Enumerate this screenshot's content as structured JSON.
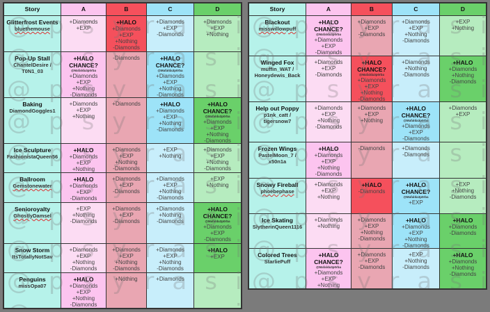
{
  "watermark": "@psyrasite",
  "colors": {
    "story": "#b6f2ea",
    "A": "#fcdcf3",
    "A_halo": "#fcc4ef",
    "B": "#e9a6b2",
    "B_halo": "#f5505c",
    "C": "#c8eefb",
    "C_halo": "#9de3f8",
    "D": "#b6ecbf",
    "D_halo": "#6ad06a",
    "background": "#7b7b7b"
  },
  "tables": [
    {
      "headers": [
        "Story",
        "A",
        "B",
        "C",
        "D"
      ],
      "rows": [
        {
          "title": "Glitterfrost Events",
          "authors": [
            "bluethemouse"
          ],
          "spell": true,
          "cells": [
            {
              "halo": false,
              "lines": [
                "+Diamonds",
                "+EXP"
              ]
            },
            {
              "halo": true,
              "lines": [
                "+HALO",
                "+Diamonds",
                "+EXP",
                "+Nothing",
                "-Diamonds"
              ]
            },
            {
              "halo": false,
              "lines": [
                "+Diamonds",
                "+EXP",
                "-Diamonds"
              ]
            },
            {
              "halo": false,
              "lines": [
                "+Diamonds",
                "+EXP",
                "+Nothing"
              ]
            }
          ]
        },
        {
          "title": "Pop-Up Stall",
          "authors": [
            "ChantelDesire /",
            "T0N1_03"
          ],
          "spell": false,
          "cells": [
            {
              "halo": true,
              "lines": [
                "+HALO",
                "CHANCE?",
                "@Mafalda3p0rba",
                "+Diamonds",
                "+EXP",
                "+Nothing",
                "-Diamonds"
              ]
            },
            {
              "halo": false,
              "lines": [
                "-Diamonds"
              ]
            },
            {
              "halo": true,
              "lines": [
                "+HALO",
                "CHANCE?",
                "@Mafalda3p0rba",
                "+Diamonds",
                "+EXP",
                "+Nothing",
                "-Diamonds"
              ]
            },
            {
              "halo": false,
              "lines": []
            }
          ]
        },
        {
          "title": "Baking",
          "authors": [
            "DiamondGoggles1"
          ],
          "spell": false,
          "cells": [
            {
              "halo": false,
              "lines": [
                "+Diamonds",
                "+EXP",
                "+Nothing"
              ]
            },
            {
              "halo": false,
              "lines": [
                "+Diamonds"
              ]
            },
            {
              "halo": true,
              "lines": [
                "+HALO",
                "+Diamonds",
                "+EXP",
                "+Nothing",
                "-Diamonds"
              ]
            },
            {
              "halo": true,
              "lines": [
                "+HALO",
                "CHANCE?",
                "@Mafalda3p0rba",
                "+Diamonds",
                "+EXP",
                "+Nothing",
                "-Diamonds"
              ]
            }
          ]
        },
        {
          "title": "Ice Sculpture",
          "authors": [
            "FashionistaQueen56"
          ],
          "spell": false,
          "cells": [
            {
              "halo": true,
              "lines": [
                "+HALO",
                "+Diamonds",
                "+EXP",
                "+Nothing"
              ]
            },
            {
              "halo": false,
              "lines": [
                "+Diamonds",
                "+EXP",
                "+Nothing",
                "-Diamonds"
              ]
            },
            {
              "halo": false,
              "lines": [
                "+EXP",
                "+Nothing"
              ]
            },
            {
              "halo": false,
              "lines": [
                "+Diamonds",
                "+EXP",
                "+Nothing",
                "-Diamonds"
              ]
            }
          ]
        },
        {
          "title": "Ballroom",
          "authors": [
            "Gemstonewater"
          ],
          "spell": true,
          "cells": [
            {
              "halo": true,
              "lines": [
                "+HALO",
                "+Diamonds",
                "+EXP",
                "-Diamonds"
              ]
            },
            {
              "halo": false,
              "lines": [
                "+Diamonds",
                "+EXP",
                "-Diamonds"
              ]
            },
            {
              "halo": false,
              "lines": [
                "+Diamonds",
                "+EXP",
                "+Nothing",
                "-Diamonds"
              ]
            },
            {
              "halo": false,
              "lines": [
                "+EXP",
                "+Nothing"
              ]
            }
          ]
        },
        {
          "title": "Senioroyalty",
          "authors": [
            "GhostlyDamsel"
          ],
          "spell": true,
          "titleSpell": true,
          "cells": [
            {
              "halo": false,
              "lines": [
                "+EXP",
                "+Nothing",
                "-Diamonds"
              ]
            },
            {
              "halo": false,
              "lines": [
                "+Diamonds",
                "+EXP",
                "-Diamonds"
              ]
            },
            {
              "halo": false,
              "lines": [
                "+Diamonds",
                "+Nothing",
                "-Diamonds"
              ]
            },
            {
              "halo": true,
              "lines": [
                "+HALO",
                "CHANCE?",
                "@Mafalda3p0rba",
                "+Diamonds",
                "+EXP",
                "-Diamonds"
              ]
            }
          ]
        },
        {
          "title": "Snow Storm",
          "authors": [
            "ItsTotallyNotSav"
          ],
          "spell": false,
          "cells": [
            {
              "halo": false,
              "lines": [
                "+Diamonds",
                "+EXP",
                "+Nothing",
                "-Diamonds"
              ]
            },
            {
              "halo": false,
              "lines": [
                "+Diamonds",
                "+EXP",
                "+Nothing",
                "-Diamonds"
              ]
            },
            {
              "halo": false,
              "lines": [
                "+Diamonds",
                "+EXP",
                "+Nothing",
                "-Diamonds"
              ]
            },
            {
              "halo": true,
              "lines": [
                "+HALO",
                "+EXP"
              ]
            }
          ]
        },
        {
          "title": "Penguins",
          "authors": [
            "missOpa07"
          ],
          "spell": false,
          "cells": [
            {
              "halo": true,
              "lines": [
                "+HALO",
                "+Diamonds",
                "+EXP",
                "+Nothing",
                "-Diamonds"
              ]
            },
            {
              "halo": false,
              "lines": [
                "+Nothing"
              ]
            },
            {
              "halo": false,
              "lines": [
                "+Diamonds"
              ]
            },
            {
              "halo": false,
              "lines": []
            }
          ]
        }
      ]
    },
    {
      "headers": [
        "Story",
        "A",
        "B",
        "C",
        "D"
      ],
      "rows": [
        {
          "title": "Blackout",
          "authors": [
            "misswillowpuff"
          ],
          "spell": true,
          "cells": [
            {
              "halo": true,
              "lines": [
                "+HALO",
                "CHANCE?",
                "@Mafalda3p0rba",
                "+Diamonds",
                "+EXP",
                "-Diamonds"
              ]
            },
            {
              "halo": false,
              "lines": [
                "+Diamonds",
                "+EXP",
                "-Diamonds"
              ]
            },
            {
              "halo": false,
              "lines": [
                "+Diamonds",
                "+EXP",
                "+Nothing",
                "-Diamonds"
              ]
            },
            {
              "halo": false,
              "lines": [
                "+EXP",
                "+Nothing"
              ]
            }
          ]
        },
        {
          "title": "Winged Fox",
          "authors": [
            "muffin_WAT /",
            "Honeydewis_Back"
          ],
          "spell": false,
          "cells": [
            {
              "halo": false,
              "lines": [
                "+Diamonds",
                "+EXP",
                "-Diamonds"
              ]
            },
            {
              "halo": true,
              "lines": [
                "+HALO",
                "CHANCE?",
                "@Mafalda3p0rba",
                "+Diamonds",
                "+EXP",
                "+Nothing",
                "-Diamonds"
              ]
            },
            {
              "halo": false,
              "lines": [
                "+Diamonds",
                "+Nothing",
                "-Diamonds"
              ]
            },
            {
              "halo": true,
              "lines": [
                "+HALO",
                "+Diamonds",
                "+Nothing",
                "-Diamonds"
              ]
            }
          ]
        },
        {
          "title": "Help out Poppy",
          "authors": [
            "p1nk_catt /",
            "tigersnow7"
          ],
          "spell": false,
          "cells": [
            {
              "halo": false,
              "lines": [
                "+Diamonds",
                "+EXP",
                "+Nothing",
                "-Diamonds"
              ]
            },
            {
              "halo": false,
              "lines": [
                "+Diamonds",
                "+EXP",
                "+Nothing"
              ]
            },
            {
              "halo": true,
              "lines": [
                "+HALO",
                "CHANCE?",
                "@Mafalda3p0rba",
                "+Diamonds",
                "+EXP",
                "-Diamonds"
              ]
            },
            {
              "halo": false,
              "lines": [
                "+Diamonds",
                "+EXP"
              ]
            }
          ]
        },
        {
          "title": "Frozen Wings",
          "authors": [
            "PastelMoon_7 /",
            "x50n1a"
          ],
          "spell": false,
          "cells": [
            {
              "halo": true,
              "lines": [
                "+HALO",
                "+Diamonds",
                "+EXP",
                "+Nothing",
                "-Diamonds"
              ]
            },
            {
              "halo": false,
              "lines": [
                "-Diamonds"
              ]
            },
            {
              "halo": false,
              "lines": [
                "+Diamonds",
                "-Diamonds"
              ]
            },
            {
              "halo": false,
              "lines": []
            }
          ]
        },
        {
          "title": "Snowy Fireball",
          "authors": [
            "phoebephase"
          ],
          "spell": true,
          "cells": [
            {
              "halo": false,
              "lines": [
                "+Diamonds",
                "+EXP",
                "+Nothing"
              ]
            },
            {
              "halo": true,
              "lines": [
                "+HALO",
                "-Diamonds"
              ]
            },
            {
              "halo": true,
              "lines": [
                "+HALO",
                "CHANCE?",
                "@Mafalda3p0rba",
                "+EXP"
              ]
            },
            {
              "halo": false,
              "lines": [
                "+EXP",
                "+Nothing",
                "-Diamonds"
              ]
            }
          ]
        },
        {
          "title": "Ice Skating",
          "authors": [
            "SlytherinQueen1116"
          ],
          "spell": false,
          "cells": [
            {
              "halo": false,
              "lines": [
                "+Diamonds",
                "+Nothing"
              ]
            },
            {
              "halo": false,
              "lines": [
                "+Diamonds",
                "+EXP",
                "+Nothing",
                "-Diamonds"
              ]
            },
            {
              "halo": true,
              "lines": [
                "+HALO",
                "+Diamonds",
                "+EXP",
                "+Nothing",
                "-Diamonds"
              ]
            },
            {
              "halo": true,
              "lines": [
                "+HALO",
                "+Diamonds",
                "-Diamonds"
              ]
            }
          ]
        },
        {
          "title": "Colored Trees",
          "authors": [
            "StarliePuff"
          ],
          "spell": false,
          "cells": [
            {
              "halo": true,
              "lines": [
                "+HALO",
                "CHANCE?",
                "@Mafalda3p0rba",
                "+Diamonds",
                "+EXP",
                "+Nothing"
              ]
            },
            {
              "halo": false,
              "lines": [
                "+Diamonds",
                "+EXP",
                "-Diamonds"
              ]
            },
            {
              "halo": false,
              "lines": [
                "+EXP",
                "+Nothing",
                "-Diamonds"
              ]
            },
            {
              "halo": true,
              "lines": [
                "+HALO",
                "+Diamonds",
                "+Nothing",
                "-Diamonds"
              ]
            }
          ]
        }
      ]
    }
  ]
}
